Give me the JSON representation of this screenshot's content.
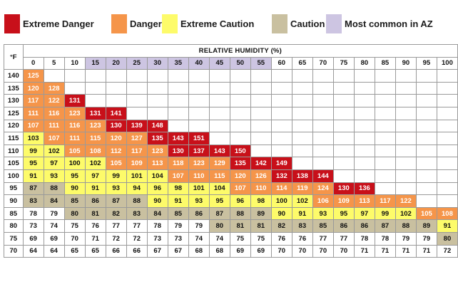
{
  "legend": [
    {
      "label": "Extreme Danger",
      "color": "#c8101a"
    },
    {
      "label": "Danger",
      "color": "#f5954a"
    },
    {
      "label": "Extreme Caution",
      "color": "#fdfb6a"
    },
    {
      "label": "Caution",
      "color": "#c9c0a0"
    },
    {
      "label": "Most common in AZ",
      "color": "#cdc5e2"
    }
  ],
  "highlight_humidity": [
    15,
    20,
    25,
    30,
    35,
    40,
    45,
    50,
    55
  ],
  "chart_data": {
    "type": "table",
    "title": "RELATIVE HUMIDITY (%)",
    "row_header_label": "°F",
    "humidity": [
      0,
      5,
      10,
      15,
      20,
      25,
      30,
      35,
      40,
      45,
      50,
      55,
      60,
      65,
      70,
      75,
      80,
      85,
      90,
      95,
      100
    ],
    "rows": [
      {
        "temp": 140,
        "values": [
          125
        ]
      },
      {
        "temp": 135,
        "values": [
          120,
          128
        ]
      },
      {
        "temp": 130,
        "values": [
          117,
          122,
          131
        ]
      },
      {
        "temp": 125,
        "values": [
          111,
          116,
          123,
          131,
          141
        ]
      },
      {
        "temp": 120,
        "values": [
          107,
          111,
          116,
          123,
          130,
          139,
          148
        ]
      },
      {
        "temp": 115,
        "values": [
          103,
          107,
          111,
          115,
          120,
          127,
          135,
          143,
          151
        ]
      },
      {
        "temp": 110,
        "values": [
          99,
          102,
          105,
          108,
          112,
          117,
          123,
          130,
          137,
          143,
          150
        ]
      },
      {
        "temp": 105,
        "values": [
          95,
          97,
          100,
          102,
          105,
          109,
          113,
          118,
          123,
          129,
          135,
          142,
          149
        ]
      },
      {
        "temp": 100,
        "values": [
          91,
          93,
          95,
          97,
          99,
          101,
          104,
          107,
          110,
          115,
          120,
          126,
          132,
          138,
          144
        ]
      },
      {
        "temp": 95,
        "values": [
          87,
          88,
          90,
          91,
          93,
          94,
          96,
          98,
          101,
          104,
          107,
          110,
          114,
          119,
          124,
          130,
          136
        ]
      },
      {
        "temp": 90,
        "values": [
          83,
          84,
          85,
          86,
          87,
          88,
          90,
          91,
          93,
          95,
          96,
          98,
          100,
          102,
          106,
          109,
          113,
          117,
          122
        ]
      },
      {
        "temp": 85,
        "values": [
          78,
          79,
          80,
          81,
          82,
          83,
          84,
          85,
          86,
          87,
          88,
          89,
          90,
          91,
          93,
          95,
          97,
          99,
          102,
          105,
          108
        ]
      },
      {
        "temp": 80,
        "values": [
          73,
          74,
          75,
          76,
          77,
          77,
          78,
          79,
          79,
          80,
          81,
          81,
          82,
          83,
          85,
          86,
          86,
          87,
          88,
          89,
          91
        ]
      },
      {
        "temp": 75,
        "values": [
          69,
          69,
          70,
          71,
          72,
          72,
          73,
          73,
          74,
          74,
          75,
          75,
          76,
          76,
          77,
          77,
          78,
          78,
          79,
          79,
          80
        ]
      },
      {
        "temp": 70,
        "values": [
          64,
          64,
          65,
          65,
          66,
          66,
          67,
          67,
          68,
          68,
          69,
          69,
          70,
          70,
          70,
          70,
          71,
          71,
          71,
          71,
          72
        ]
      }
    ]
  }
}
